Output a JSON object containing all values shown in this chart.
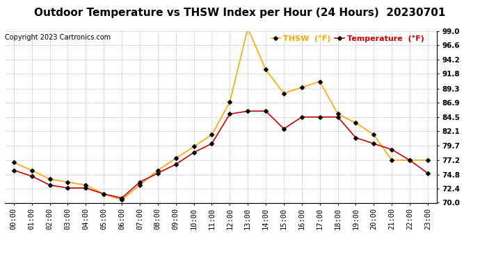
{
  "title": "Outdoor Temperature vs THSW Index per Hour (24 Hours)  20230701",
  "copyright": "Copyright 2023 Cartronics.com",
  "hours": [
    "00:00",
    "01:00",
    "02:00",
    "03:00",
    "04:00",
    "05:00",
    "06:00",
    "07:00",
    "08:00",
    "09:00",
    "10:00",
    "11:00",
    "12:00",
    "13:00",
    "14:00",
    "15:00",
    "16:00",
    "17:00",
    "18:00",
    "19:00",
    "20:00",
    "21:00",
    "22:00",
    "23:00"
  ],
  "thsw": [
    76.8,
    75.5,
    74.0,
    73.5,
    73.0,
    71.5,
    70.5,
    73.0,
    75.5,
    77.5,
    79.5,
    81.5,
    87.0,
    99.5,
    92.5,
    88.5,
    89.5,
    90.5,
    85.0,
    83.5,
    81.5,
    77.2,
    77.2,
    77.2
  ],
  "temperature": [
    75.5,
    74.5,
    73.0,
    72.5,
    72.5,
    71.5,
    70.8,
    73.5,
    75.0,
    76.5,
    78.5,
    80.0,
    85.0,
    85.5,
    85.5,
    82.5,
    84.5,
    84.5,
    84.5,
    81.0,
    80.0,
    79.0,
    77.2,
    75.0
  ],
  "thsw_color": "#FFA500",
  "temp_color": "#CC0000",
  "marker": "D",
  "marker_color": "black",
  "marker_size": 3,
  "ylim": [
    70.0,
    99.0
  ],
  "yticks": [
    70.0,
    72.4,
    74.8,
    77.2,
    79.7,
    82.1,
    84.5,
    86.9,
    89.3,
    91.8,
    94.2,
    96.6,
    99.0
  ],
  "background_color": "#ffffff",
  "grid_color": "#bbbbbb",
  "title_fontsize": 11,
  "legend_fontsize": 8,
  "tick_fontsize": 7.5,
  "copyright_fontsize": 7
}
